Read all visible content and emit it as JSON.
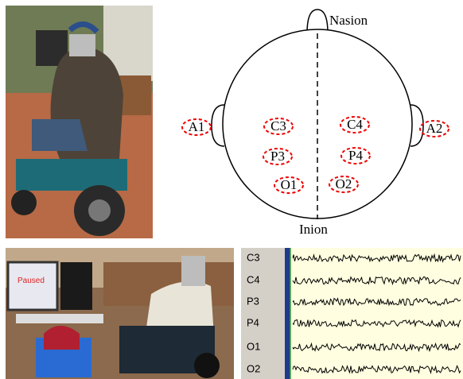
{
  "head_diagram": {
    "landmarks": [
      "Nasion",
      "Inion"
    ],
    "electrodes": [
      "A1",
      "A2",
      "C3",
      "C4",
      "P3",
      "P4",
      "O1",
      "O2"
    ]
  },
  "eeg_panel": {
    "channels": [
      "C3",
      "C4",
      "P3",
      "P4",
      "O1",
      "O2"
    ]
  },
  "photo_bottom": {
    "screen_text": "Paused"
  }
}
